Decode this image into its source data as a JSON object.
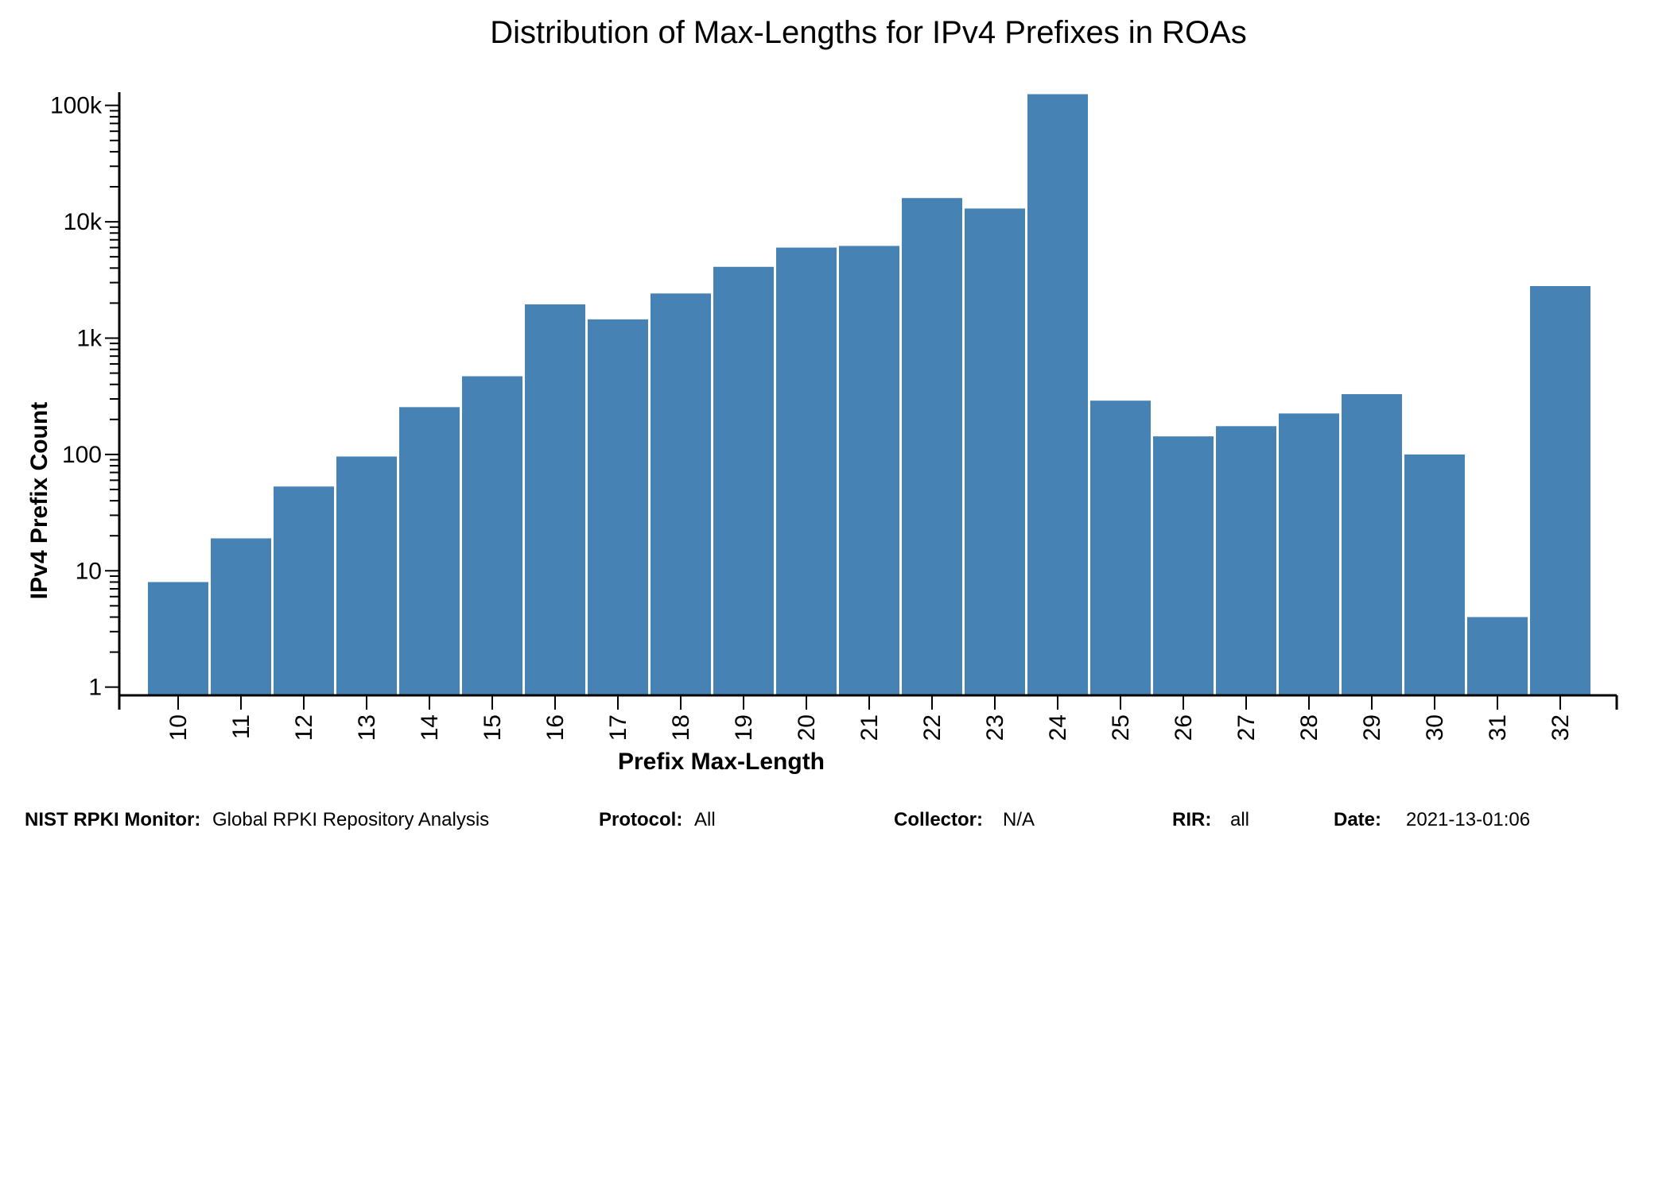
{
  "chart_data": {
    "type": "bar",
    "title": "Distribution of Max-Lengths for IPv4 Prefixes in ROAs",
    "xlabel": "Prefix Max-Length",
    "ylabel": "IPv4 Prefix Count",
    "yscale": "log",
    "ylim": [
      0.85,
      130000
    ],
    "y_ticks": [
      {
        "value": 1,
        "label": "1"
      },
      {
        "value": 10,
        "label": "10"
      },
      {
        "value": 100,
        "label": "100"
      },
      {
        "value": 1000,
        "label": "1k"
      },
      {
        "value": 10000,
        "label": "10k"
      },
      {
        "value": 100000,
        "label": "100k"
      }
    ],
    "categories": [
      "10",
      "11",
      "12",
      "13",
      "14",
      "15",
      "16",
      "17",
      "18",
      "19",
      "20",
      "21",
      "22",
      "23",
      "24",
      "25",
      "26",
      "27",
      "28",
      "29",
      "30",
      "31",
      "32"
    ],
    "values": [
      8,
      19,
      53,
      96,
      255,
      470,
      1950,
      1450,
      2420,
      4100,
      6000,
      6200,
      16000,
      13000,
      125000,
      290,
      143,
      175,
      225,
      330,
      100,
      4,
      2800
    ],
    "bar_color": "#4682b4",
    "grid": false,
    "legend": "none"
  },
  "footer": {
    "monitor_label": "NIST RPKI Monitor:",
    "monitor_value": "Global RPKI Repository Analysis",
    "protocol_label": "Protocol:",
    "protocol_value": "All",
    "collector_label": "Collector:",
    "collector_value": "N/A",
    "rir_label": "RIR:",
    "rir_value": "all",
    "date_label": "Date:",
    "date_value": "2021-13-01:06"
  }
}
